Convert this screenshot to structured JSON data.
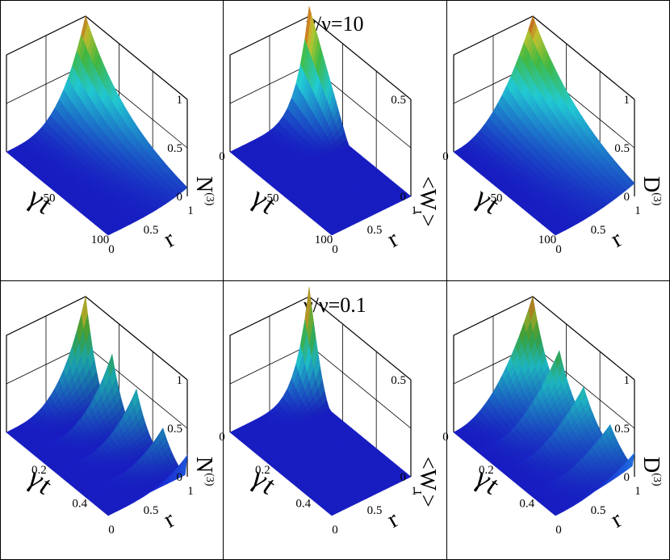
{
  "rows": [
    {
      "title": "γ/ν=10"
    },
    {
      "title": "γ/ν=0.1"
    }
  ],
  "colors": {
    "low": "#1a1fd2",
    "cyan": "#26e6f0",
    "green": "#4cd94c",
    "yellow": "#e8e838",
    "red": "#f23a1c",
    "frame": "#000000",
    "grid": "#000000"
  },
  "chart_data": [
    {
      "id": "top-left",
      "type": "surface3d",
      "shape": "decay",
      "peak": 1.0,
      "z_label_main": "N",
      "z_label_sup": "(3)",
      "t_label_main": "γ",
      "t_label_sub": "t",
      "r_label": "r",
      "t_ticks": [
        "0",
        "50",
        "100"
      ],
      "r_ticks": [
        "0",
        "0.5",
        "1"
      ],
      "z_ticks": [
        "0",
        "0.5",
        "1"
      ],
      "t_range": [
        0,
        100
      ],
      "r_range": [
        0,
        1
      ],
      "z_range": [
        0,
        1
      ]
    },
    {
      "id": "top-middle",
      "type": "surface3d",
      "shape": "narrow",
      "peak": 0.55,
      "z_label_main": "<W",
      "z_label_sub": "I",
      "z_label_end": ">",
      "t_label_main": "γ",
      "t_label_sub": "t",
      "r_label": "r",
      "t_ticks": [
        "0",
        "50",
        "100"
      ],
      "r_ticks": [
        "0",
        "0.5",
        "1"
      ],
      "z_ticks": [
        "0",
        "0.5"
      ],
      "t_range": [
        0,
        100
      ],
      "r_range": [
        0,
        1
      ],
      "z_range": [
        0,
        0.5
      ]
    },
    {
      "id": "top-right",
      "type": "surface3d",
      "shape": "decay-slow",
      "peak": 1.0,
      "z_label_main": "D",
      "z_label_sup": "(3)",
      "t_label_main": "γ",
      "t_label_sub": "t",
      "r_label": "r",
      "t_ticks": [
        "0",
        "50",
        "100"
      ],
      "r_ticks": [
        "0",
        "0.5",
        "1"
      ],
      "z_ticks": [
        "0",
        "0.5",
        "1"
      ],
      "t_range": [
        0,
        100
      ],
      "r_range": [
        0,
        1
      ],
      "z_range": [
        0,
        1
      ]
    },
    {
      "id": "bottom-left",
      "type": "surface3d",
      "shape": "oscillate",
      "peak": 1.0,
      "z_label_main": "N",
      "z_label_sup": "(3)",
      "t_label_main": "γ",
      "t_label_sub": "t",
      "r_label": "r",
      "t_ticks": [
        "0",
        "0.2",
        "0.4"
      ],
      "r_ticks": [
        "0",
        "0.5",
        "1"
      ],
      "z_ticks": [
        "0",
        "0.5",
        "1"
      ],
      "t_range": [
        0,
        0.5
      ],
      "r_range": [
        0,
        1
      ],
      "z_range": [
        0,
        1
      ]
    },
    {
      "id": "bottom-middle",
      "type": "surface3d",
      "shape": "narrow-osc",
      "peak": 0.55,
      "z_label_main": "<W",
      "z_label_sub": "I",
      "z_label_end": ">",
      "t_label_main": "γ",
      "t_label_sub": "t",
      "r_label": "r",
      "t_ticks": [
        "0",
        "0.2",
        "0.4"
      ],
      "r_ticks": [
        "0",
        "0.5",
        "1"
      ],
      "z_ticks": [
        "0",
        "0.5"
      ],
      "t_range": [
        0,
        0.5
      ],
      "r_range": [
        0,
        1
      ],
      "z_range": [
        0,
        0.5
      ]
    },
    {
      "id": "bottom-right",
      "type": "surface3d",
      "shape": "oscillate-slow",
      "peak": 1.0,
      "z_label_main": "D",
      "z_label_sup": "(3)",
      "t_label_main": "γ",
      "t_label_sub": "t",
      "r_label": "r",
      "t_ticks": [
        "0",
        "0.2",
        "0.4"
      ],
      "r_ticks": [
        "0",
        "0.5",
        "1"
      ],
      "z_ticks": [
        "0",
        "0.5",
        "1"
      ],
      "t_range": [
        0,
        0.5
      ],
      "r_range": [
        0,
        1
      ],
      "z_range": [
        0,
        1
      ]
    }
  ]
}
